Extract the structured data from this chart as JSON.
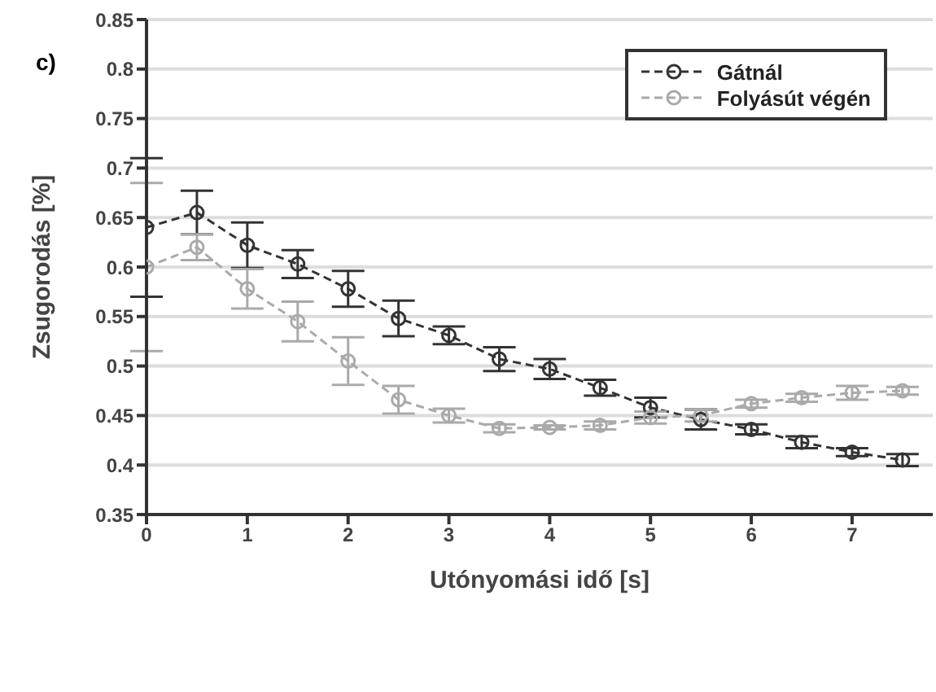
{
  "chart_data": {
    "type": "line",
    "xlabel": "Utónyomási idő [s]",
    "ylabel": "Zsugorodás [%]",
    "annotations": [
      "c)"
    ],
    "xlim": [
      0,
      7.8
    ],
    "xticks": [
      0,
      1,
      2,
      3,
      4,
      5,
      6,
      7
    ],
    "ylim": [
      0.35,
      0.85
    ],
    "yticks": [
      0.35,
      0.4,
      0.45,
      0.5,
      0.55,
      0.6,
      0.65,
      0.7,
      0.75,
      0.8,
      0.85
    ],
    "x": [
      0,
      0.5,
      1,
      1.5,
      2,
      2.5,
      3,
      3.5,
      4,
      4.5,
      5,
      5.5,
      6,
      6.5,
      7,
      7.5
    ],
    "grid": "y",
    "legend": "top right",
    "marker": "circle",
    "line_style": "dashed",
    "series": [
      {
        "name": "Gátnál",
        "color": "#333333",
        "values": [
          0.64,
          0.655,
          0.622,
          0.603,
          0.578,
          0.548,
          0.531,
          0.507,
          0.497,
          0.478,
          0.458,
          0.446,
          0.436,
          0.423,
          0.413,
          0.405
        ],
        "errors": [
          0.07,
          0.022,
          0.023,
          0.014,
          0.018,
          0.018,
          0.009,
          0.012,
          0.01,
          0.008,
          0.01,
          0.01,
          0.005,
          0.006,
          0.004,
          0.006
        ]
      },
      {
        "name": "Folyásút végén",
        "color": "#aaaaaa",
        "values": [
          0.6,
          0.62,
          0.578,
          0.545,
          0.505,
          0.466,
          0.45,
          0.437,
          0.438,
          0.44,
          0.448,
          0.45,
          0.462,
          0.468,
          0.473,
          0.475
        ],
        "errors": [
          0.085,
          0.013,
          0.02,
          0.02,
          0.024,
          0.014,
          0.007,
          0.004,
          0.002,
          0.004,
          0.006,
          0.006,
          0.004,
          0.004,
          0.007,
          0.004
        ]
      }
    ]
  }
}
